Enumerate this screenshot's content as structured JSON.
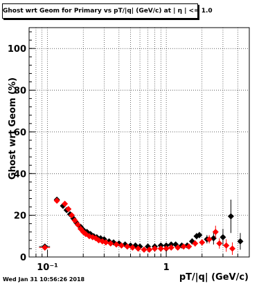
{
  "title": "Ghost wrt Geom for Primary vs pT/|q| (GeV/c) at |  η  | <= 1.0",
  "footer": {
    "date": "Wed Jan 31 10:56:26 2018"
  },
  "chart_data": {
    "type": "scatter",
    "xlabel": "pT/|q| (GeV/c)",
    "ylabel": "Ghost wrt Geom (%)",
    "x_scale": "log",
    "xlim": [
      0.07,
      5
    ],
    "ylim": [
      0,
      110
    ],
    "x_ticks": [
      {
        "v": 0.1,
        "label": "10⁻¹"
      },
      {
        "v": 1,
        "label": "1"
      }
    ],
    "y_ticks": [
      0,
      20,
      40,
      60,
      80,
      100
    ],
    "grid": true,
    "legend": "none",
    "colors": {
      "series_a": "#000000",
      "series_b": "#ff0000"
    },
    "series": [
      {
        "color": "#000000",
        "points": [
          {
            "x": 0.095,
            "y": 5.0,
            "xerr": 0.01,
            "yerr": 1.0
          },
          {
            "x": 0.12,
            "y": 27.5,
            "yerr": 0.8
          },
          {
            "x": 0.135,
            "y": 24.5,
            "yerr": 0.8
          },
          {
            "x": 0.145,
            "y": 22.5,
            "yerr": 0.8
          },
          {
            "x": 0.155,
            "y": 20.5,
            "yerr": 0.8
          },
          {
            "x": 0.165,
            "y": 18.5,
            "yerr": 0.8
          },
          {
            "x": 0.175,
            "y": 16.5,
            "yerr": 0.8
          },
          {
            "x": 0.19,
            "y": 14.5,
            "yerr": 0.8
          },
          {
            "x": 0.2,
            "y": 13.0,
            "yerr": 0.8
          },
          {
            "x": 0.215,
            "y": 12.0,
            "yerr": 0.8
          },
          {
            "x": 0.23,
            "y": 11.0,
            "yerr": 0.8
          },
          {
            "x": 0.245,
            "y": 10.0,
            "yerr": 0.8
          },
          {
            "x": 0.26,
            "y": 9.5,
            "yerr": 0.8
          },
          {
            "x": 0.28,
            "y": 9.0,
            "yerr": 0.8
          },
          {
            "x": 0.3,
            "y": 8.5,
            "yerr": 0.8
          },
          {
            "x": 0.33,
            "y": 7.5,
            "yerr": 0.8
          },
          {
            "x": 0.36,
            "y": 7.0,
            "yerr": 0.8
          },
          {
            "x": 0.4,
            "y": 6.5,
            "yerr": 0.8
          },
          {
            "x": 0.45,
            "y": 6.0,
            "yerr": 0.8
          },
          {
            "x": 0.5,
            "y": 5.5,
            "yerr": 0.8
          },
          {
            "x": 0.55,
            "y": 5.5,
            "yerr": 0.8
          },
          {
            "x": 0.6,
            "y": 5.0,
            "yerr": 0.8
          },
          {
            "x": 0.7,
            "y": 5.0,
            "yerr": 0.8
          },
          {
            "x": 0.8,
            "y": 5.0,
            "yerr": 0.8
          },
          {
            "x": 0.9,
            "y": 5.5,
            "yerr": 0.8
          },
          {
            "x": 1.0,
            "y": 5.5,
            "yerr": 0.8
          },
          {
            "x": 1.1,
            "y": 6.0,
            "yerr": 1.0
          },
          {
            "x": 1.2,
            "y": 6.0,
            "yerr": 1.0
          },
          {
            "x": 1.35,
            "y": 5.5,
            "yerr": 1.0
          },
          {
            "x": 1.5,
            "y": 5.5,
            "yerr": 1.0
          },
          {
            "x": 1.65,
            "y": 7.5,
            "yerr": 1.5
          },
          {
            "x": 1.8,
            "y": 10.0,
            "yerr": 1.5
          },
          {
            "x": 1.9,
            "y": 10.5,
            "yerr": 1.5
          },
          {
            "x": 2.2,
            "y": 8.5,
            "yerr": 2.0
          },
          {
            "x": 2.5,
            "y": 9.0,
            "yerr": 3.0
          },
          {
            "x": 3.0,
            "y": 9.5,
            "yerr": 4.0
          },
          {
            "x": 3.5,
            "y": 19.5,
            "yerr": 8.0
          },
          {
            "x": 4.2,
            "y": 7.5,
            "yerr": 4.0
          }
        ]
      },
      {
        "color": "#ff0000",
        "points": [
          {
            "x": 0.095,
            "y": 4.5,
            "xerr": 0.01,
            "yerr": 1.0
          },
          {
            "x": 0.12,
            "y": 27.0,
            "yerr": 0.8
          },
          {
            "x": 0.14,
            "y": 25.5,
            "yerr": 0.8
          },
          {
            "x": 0.15,
            "y": 23.0,
            "yerr": 0.8
          },
          {
            "x": 0.16,
            "y": 20.0,
            "yerr": 0.8
          },
          {
            "x": 0.17,
            "y": 17.5,
            "yerr": 0.8
          },
          {
            "x": 0.18,
            "y": 15.5,
            "yerr": 0.8
          },
          {
            "x": 0.19,
            "y": 13.5,
            "yerr": 0.8
          },
          {
            "x": 0.2,
            "y": 12.0,
            "yerr": 0.8
          },
          {
            "x": 0.21,
            "y": 11.0,
            "yerr": 0.8
          },
          {
            "x": 0.225,
            "y": 10.0,
            "yerr": 0.8
          },
          {
            "x": 0.24,
            "y": 9.5,
            "yerr": 0.8
          },
          {
            "x": 0.255,
            "y": 9.0,
            "yerr": 0.8
          },
          {
            "x": 0.27,
            "y": 8.0,
            "yerr": 0.8
          },
          {
            "x": 0.29,
            "y": 7.5,
            "yerr": 0.8
          },
          {
            "x": 0.31,
            "y": 7.0,
            "yerr": 0.8
          },
          {
            "x": 0.34,
            "y": 6.5,
            "yerr": 0.8
          },
          {
            "x": 0.38,
            "y": 6.0,
            "yerr": 0.8
          },
          {
            "x": 0.42,
            "y": 5.5,
            "yerr": 0.8
          },
          {
            "x": 0.47,
            "y": 5.0,
            "yerr": 0.8
          },
          {
            "x": 0.52,
            "y": 4.5,
            "yerr": 0.8
          },
          {
            "x": 0.58,
            "y": 4.0,
            "yerr": 0.8
          },
          {
            "x": 0.65,
            "y": 3.5,
            "yerr": 0.8
          },
          {
            "x": 0.72,
            "y": 3.5,
            "yerr": 0.8
          },
          {
            "x": 0.8,
            "y": 4.0,
            "yerr": 0.8
          },
          {
            "x": 0.9,
            "y": 4.0,
            "yerr": 0.8
          },
          {
            "x": 1.0,
            "y": 4.0,
            "yerr": 0.8
          },
          {
            "x": 1.1,
            "y": 4.5,
            "yerr": 1.0
          },
          {
            "x": 1.25,
            "y": 4.5,
            "yerr": 1.0
          },
          {
            "x": 1.4,
            "y": 5.0,
            "yerr": 1.0
          },
          {
            "x": 1.55,
            "y": 5.0,
            "yerr": 1.0
          },
          {
            "x": 1.75,
            "y": 6.5,
            "yerr": 1.5
          },
          {
            "x": 2.0,
            "y": 7.0,
            "yerr": 1.5
          },
          {
            "x": 2.3,
            "y": 8.5,
            "yerr": 2.0
          },
          {
            "x": 2.6,
            "y": 12.0,
            "yerr": 3.0
          },
          {
            "x": 2.8,
            "y": 6.5,
            "yerr": 2.5
          },
          {
            "x": 3.2,
            "y": 5.5,
            "yerr": 3.0
          },
          {
            "x": 3.6,
            "y": 4.0,
            "yerr": 3.0
          }
        ]
      }
    ]
  }
}
